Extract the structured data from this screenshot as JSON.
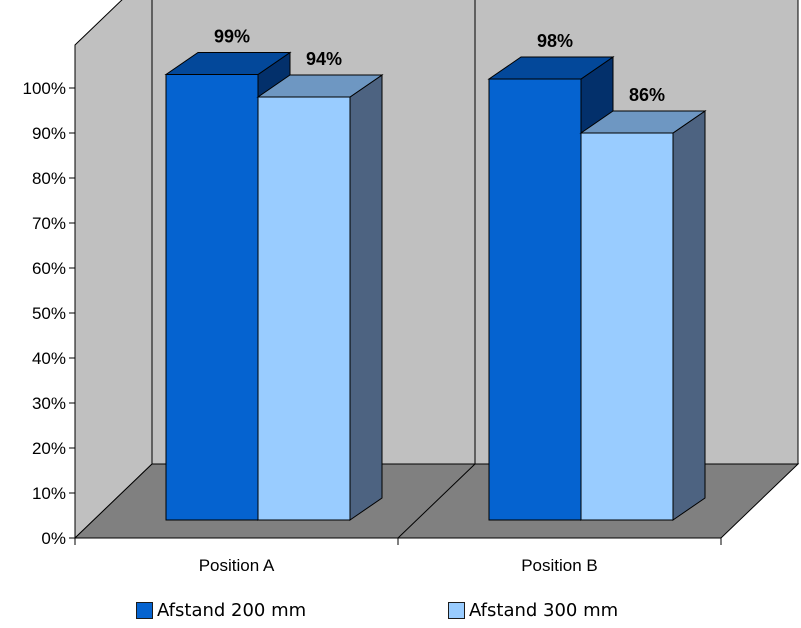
{
  "chart_data": {
    "type": "bar",
    "categories": [
      "Position A",
      "Position B"
    ],
    "series": [
      {
        "name": "Afstand 200 mm",
        "values": [
          99,
          98
        ],
        "data_labels": [
          "99%",
          "98%"
        ],
        "color": "#0563D0"
      },
      {
        "name": "Afstand 300 mm",
        "values": [
          94,
          86
        ],
        "data_labels": [
          "94%",
          "86%"
        ],
        "color": "#99CCFF"
      }
    ],
    "y_ticks": [
      "0%",
      "10%",
      "20%",
      "30%",
      "40%",
      "50%",
      "60%",
      "70%",
      "80%",
      "90%",
      "100%"
    ],
    "ylim": [
      0,
      100
    ],
    "title": "",
    "xlabel": "",
    "ylabel": "",
    "legend_position": "bottom",
    "three_d": true,
    "wall_color": "#C0C0C0",
    "floor_color": "#808080"
  }
}
